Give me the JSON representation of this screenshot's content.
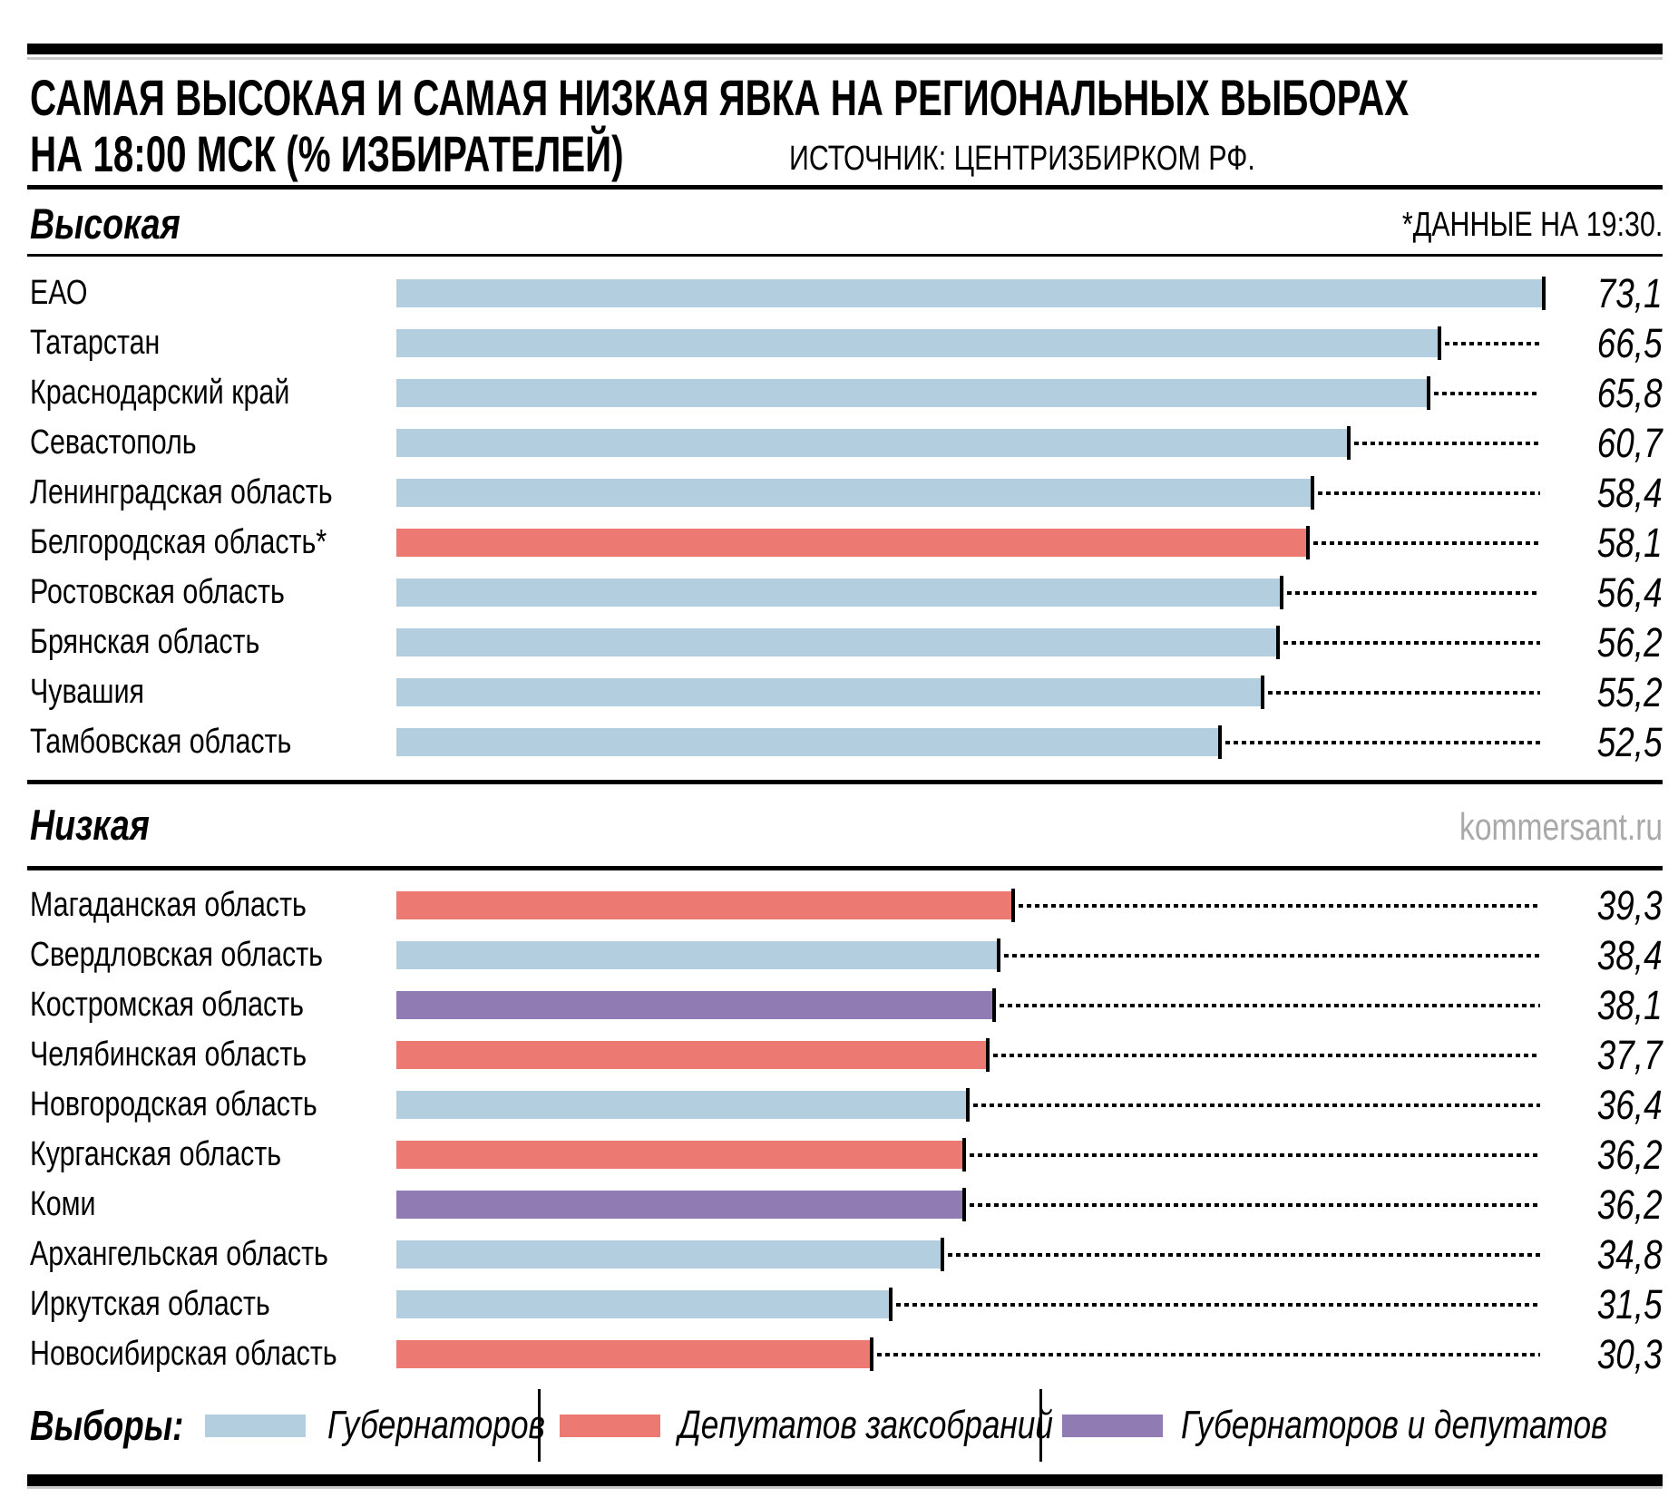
{
  "header": {
    "title_line1": "САМАЯ ВЫСОКАЯ И САМАЯ НИЗКАЯ ЯВКА НА РЕГИОНАЛЬНЫХ ВЫБОРАХ",
    "title_line2": "НА 18:00 МСК (% ИЗБИРАТЕЛЕЙ)",
    "source": "ИСТОЧНИК: ЦЕНТРИЗБИРКОМ РФ."
  },
  "colors": {
    "governors": "#b3cfdf",
    "deputies": "#ed7a72",
    "both": "#907bb3",
    "watermark_text": "#a9a9a9"
  },
  "sections": [
    {
      "name": "Высокая",
      "note": "*ДАННЫЕ НА 19:30.",
      "rows": [
        {
          "label": "ЕАО",
          "value": 73.1,
          "display": "73,1",
          "category": "governors"
        },
        {
          "label": "Татарстан",
          "value": 66.5,
          "display": "66,5",
          "category": "governors"
        },
        {
          "label": "Краснодарский край",
          "value": 65.8,
          "display": "65,8",
          "category": "governors"
        },
        {
          "label": "Севастополь",
          "value": 60.7,
          "display": "60,7",
          "category": "governors"
        },
        {
          "label": "Ленинградская область",
          "value": 58.4,
          "display": "58,4",
          "category": "governors"
        },
        {
          "label": "Белгородская область*",
          "value": 58.1,
          "display": "58,1",
          "category": "deputies"
        },
        {
          "label": "Ростовская область",
          "value": 56.4,
          "display": "56,4",
          "category": "governors"
        },
        {
          "label": "Брянская область",
          "value": 56.2,
          "display": "56,2",
          "category": "governors"
        },
        {
          "label": "Чувашия",
          "value": 55.2,
          "display": "55,2",
          "category": "governors"
        },
        {
          "label": "Тамбовская область",
          "value": 52.5,
          "display": "52,5",
          "category": "governors"
        }
      ]
    },
    {
      "name": "Низкая",
      "note": "kommersant.ru",
      "rows": [
        {
          "label": "Магаданская область",
          "value": 39.3,
          "display": "39,3",
          "category": "deputies"
        },
        {
          "label": "Свердловская область",
          "value": 38.4,
          "display": "38,4",
          "category": "governors"
        },
        {
          "label": "Костромская область",
          "value": 38.1,
          "display": "38,1",
          "category": "both"
        },
        {
          "label": "Челябинская область",
          "value": 37.7,
          "display": "37,7",
          "category": "deputies"
        },
        {
          "label": "Новгородская область",
          "value": 36.4,
          "display": "36,4",
          "category": "governors"
        },
        {
          "label": "Курганская область",
          "value": 36.2,
          "display": "36,2",
          "category": "deputies"
        },
        {
          "label": "Коми",
          "value": 36.2,
          "display": "36,2",
          "category": "both"
        },
        {
          "label": "Архангельская область",
          "value": 34.8,
          "display": "34,8",
          "category": "governors"
        },
        {
          "label": "Иркутская область",
          "value": 31.5,
          "display": "31,5",
          "category": "governors"
        },
        {
          "label": "Новосибирская область",
          "value": 30.3,
          "display": "30,3",
          "category": "deputies"
        }
      ]
    }
  ],
  "legend": {
    "label": "Выборы:",
    "items": [
      {
        "label": "Губернаторов",
        "category": "governors"
      },
      {
        "label": "Депутатов заксобраний",
        "category": "deputies"
      },
      {
        "label": "Губернаторов и депутатов",
        "category": "both"
      }
    ]
  },
  "chart_data": {
    "type": "bar",
    "orientation": "horizontal",
    "title": "САМАЯ ВЫСОКАЯ И САМАЯ НИЗКАЯ ЯВКА НА РЕГИОНАЛЬНЫХ ВЫБОРАХ НА 18:00 МСК (% ИЗБИРАТЕЛЕЙ)",
    "source": "ИСТОЧНИК: ЦЕНТРИЗБИРКОМ РФ.",
    "note": "*ДАННЫЕ НА 19:30.",
    "watermark": "kommersant.ru",
    "value_unit": "% избирателей",
    "xlim": [
      0,
      73.1
    ],
    "grid": false,
    "legend_position": "bottom",
    "legend": {
      "title": "Выборы:",
      "entries": [
        {
          "label": "Губернаторов",
          "color": "#b3cfdf"
        },
        {
          "label": "Депутатов заксобраний",
          "color": "#ed7a72"
        },
        {
          "label": "Губернаторов и депутатов",
          "color": "#907bb3"
        }
      ]
    },
    "groups": [
      {
        "name": "Высокая",
        "categories": [
          "ЕАО",
          "Татарстан",
          "Краснодарский край",
          "Севастополь",
          "Ленинградская область",
          "Белгородская область*",
          "Ростовская область",
          "Брянская область",
          "Чувашия",
          "Тамбовская область"
        ],
        "values": [
          73.1,
          66.5,
          65.8,
          60.7,
          58.4,
          58.1,
          56.4,
          56.2,
          55.2,
          52.5
        ],
        "election_type": [
          "Губернаторов",
          "Губернаторов",
          "Губернаторов",
          "Губернаторов",
          "Губернаторов",
          "Депутатов заксобраний",
          "Губернаторов",
          "Губернаторов",
          "Губернаторов",
          "Губернаторов"
        ]
      },
      {
        "name": "Низкая",
        "categories": [
          "Магаданская область",
          "Свердловская область",
          "Костромская область",
          "Челябинская область",
          "Новгородская область",
          "Курганская область",
          "Коми",
          "Архангельская область",
          "Иркутская область",
          "Новосибирская область"
        ],
        "values": [
          39.3,
          38.4,
          38.1,
          37.7,
          36.4,
          36.2,
          36.2,
          34.8,
          31.5,
          30.3
        ],
        "election_type": [
          "Депутатов заксобраний",
          "Губернаторов",
          "Губернаторов и депутатов",
          "Депутатов заксобраний",
          "Губернаторов",
          "Депутатов заксобраний",
          "Губернаторов и депутатов",
          "Губернаторов",
          "Губернаторов",
          "Депутатов заксобраний"
        ]
      }
    ]
  }
}
